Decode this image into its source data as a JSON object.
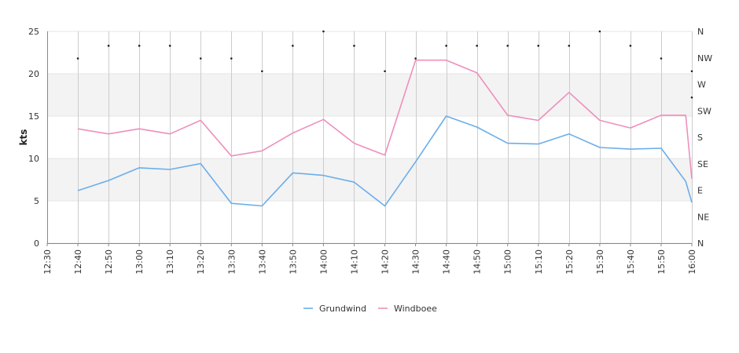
{
  "chart_data": {
    "type": "line",
    "title": "",
    "xlabel": "",
    "ylabel": "kts",
    "ylim": [
      0,
      25
    ],
    "yticks": [
      "0",
      "5",
      "10",
      "15",
      "20",
      "25"
    ],
    "right_axis_labels": [
      "N",
      "NE",
      "E",
      "SE",
      "S",
      "SW",
      "W",
      "NW",
      "N"
    ],
    "x_tick_labels": [
      "12:30",
      "12:40",
      "12:50",
      "13:00",
      "13:10",
      "13:20",
      "13:30",
      "13:40",
      "13:50",
      "14:00",
      "14:10",
      "14:20",
      "14:30",
      "14:40",
      "14:50",
      "15:00",
      "15:10",
      "15:20",
      "15:30",
      "15:40",
      "15:50",
      "16:00"
    ],
    "x": [
      "12:40",
      "12:50",
      "13:00",
      "13:10",
      "13:20",
      "13:30",
      "13:40",
      "13:50",
      "14:00",
      "14:10",
      "14:20",
      "14:30",
      "14:40",
      "14:50",
      "15:00",
      "15:10",
      "15:20",
      "15:30",
      "15:40",
      "15:50",
      "15:58",
      "16:00"
    ],
    "series": [
      {
        "name": "Grundwind",
        "color": "#6aaeea",
        "values": [
          6.2,
          7.4,
          8.9,
          8.7,
          9.4,
          4.7,
          4.4,
          8.3,
          8.0,
          7.2,
          4.4,
          9.6,
          15.0,
          13.7,
          11.8,
          11.7,
          12.9,
          11.3,
          11.1,
          11.2,
          7.3,
          4.8
        ]
      },
      {
        "name": "Windboee",
        "color": "#ee8fbd",
        "values": [
          13.5,
          12.9,
          13.5,
          12.9,
          14.5,
          10.3,
          10.9,
          13.0,
          14.6,
          11.8,
          10.4,
          21.6,
          21.6,
          20.1,
          15.1,
          14.5,
          17.8,
          14.5,
          13.6,
          15.1,
          15.1,
          7.6
        ]
      }
    ],
    "direction_dots": {
      "x": [
        "12:40",
        "12:50",
        "13:00",
        "13:10",
        "13:20",
        "13:30",
        "13:40",
        "13:50",
        "14:00",
        "14:10",
        "14:20",
        "14:30",
        "14:40",
        "14:50",
        "15:00",
        "15:10",
        "15:20",
        "15:30",
        "15:40",
        "15:50",
        "16:00",
        "16:00"
      ],
      "y_kts": [
        21.8,
        23.3,
        23.3,
        23.3,
        21.8,
        21.8,
        20.3,
        23.3,
        25.0,
        23.3,
        20.3,
        21.8,
        23.3,
        23.3,
        23.3,
        23.3,
        23.3,
        25.0,
        23.3,
        21.8,
        20.3,
        17.2
      ]
    },
    "grid": true,
    "legend_position": "bottom-center",
    "colors": {
      "band": "#f3f3f3",
      "grid": "#cccccc",
      "axis": "#888888",
      "dot": "#222222"
    }
  }
}
